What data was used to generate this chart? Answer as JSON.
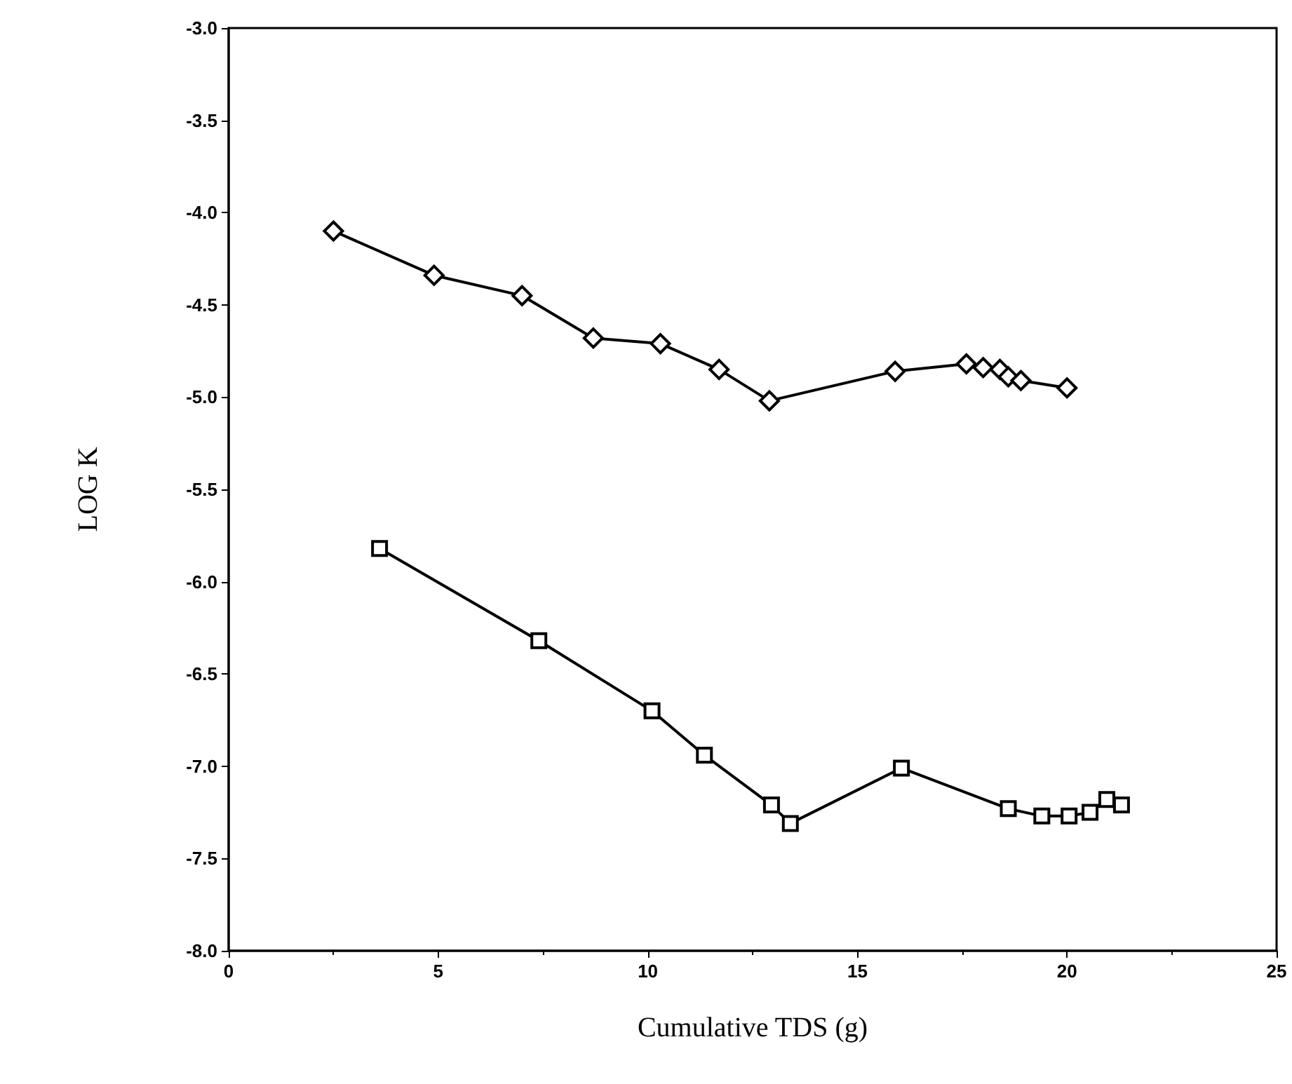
{
  "chart_data": {
    "type": "line",
    "xlabel": "Cumulative TDS (g)",
    "ylabel": "LOG K",
    "xlim": [
      0,
      25
    ],
    "xticks": [
      0,
      5,
      10,
      15,
      20,
      25
    ],
    "ylim": [
      -8,
      -3
    ],
    "yticks": [
      {
        "value": -8,
        "label": "-8.0"
      },
      {
        "value": -7.5,
        "label": "-7.5"
      },
      {
        "value": -7,
        "label": "-7.0"
      },
      {
        "value": -6.5,
        "label": "-6.5"
      },
      {
        "value": -6,
        "label": "-6.0"
      },
      {
        "value": -5.5,
        "label": "-5.5"
      },
      {
        "value": -5,
        "label": "-5.0"
      },
      {
        "value": -4.5,
        "label": "-4.5"
      },
      {
        "value": -4,
        "label": "-4.0"
      },
      {
        "value": -3.5,
        "label": "-3.5"
      },
      {
        "value": -3,
        "label": "-3.0"
      }
    ],
    "grid": false,
    "line_style": "solid",
    "series": [
      {
        "color": "#000000",
        "marker": "diamond",
        "x": [
          2.5,
          4.9,
          7.0,
          8.7,
          10.3,
          11.7,
          12.9,
          15.9,
          17.6,
          18.0,
          18.4,
          18.6,
          18.9,
          20.0
        ],
        "values": [
          -4.1,
          -4.34,
          -4.45,
          -4.68,
          -4.71,
          -4.85,
          -5.02,
          -4.86,
          -4.82,
          -4.84,
          -4.85,
          -4.89,
          -4.91,
          -4.95
        ]
      },
      {
        "color": "#000000",
        "marker": "square",
        "x": [
          3.6,
          7.4,
          10.1,
          11.35,
          12.95,
          13.4,
          16.05,
          18.6,
          19.4,
          20.05,
          20.55,
          20.95,
          21.3
        ],
        "values": [
          -5.82,
          -6.32,
          -6.7,
          -6.94,
          -7.21,
          -7.31,
          -7.01,
          -7.23,
          -7.27,
          -7.27,
          -7.25,
          -7.18,
          -7.21
        ]
      }
    ]
  }
}
